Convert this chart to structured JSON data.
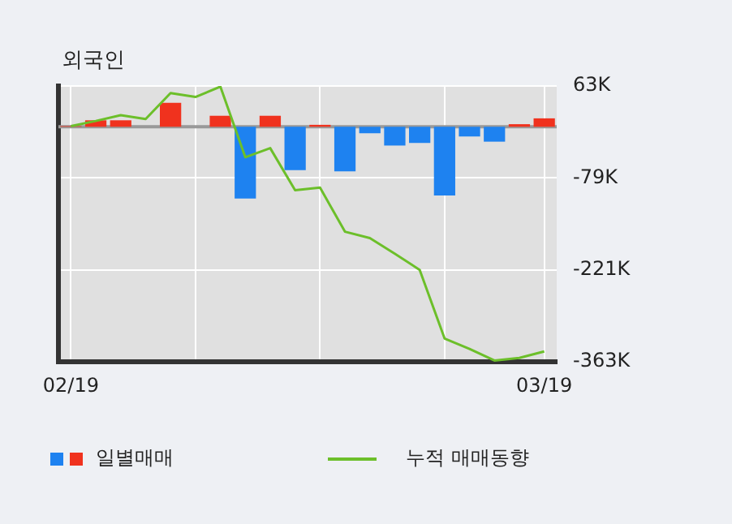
{
  "chart_data": {
    "type": "bar",
    "title": "외국인",
    "categories": [
      "02/19",
      null,
      null,
      null,
      null,
      null,
      null,
      null,
      null,
      null,
      null,
      null,
      null,
      null,
      null,
      null,
      null,
      null,
      null,
      "03/19"
    ],
    "series": [
      {
        "name": "일별매매",
        "values": [
          1,
          10,
          10,
          0,
          37,
          0,
          17,
          -111,
          17,
          -67,
          3,
          -69,
          -10,
          -29,
          -25,
          -106,
          -15,
          -23,
          4,
          13
        ],
        "colors": [
          "#f0321e",
          "#f0321e",
          "#f0321e",
          "#f0321e",
          "#f0321e",
          "#f0321e",
          "#f0321e",
          "#1e82f0",
          "#f0321e",
          "#1e82f0",
          "#f0321e",
          "#1e82f0",
          "#1e82f0",
          "#1e82f0",
          "#1e82f0",
          "#1e82f0",
          "#1e82f0",
          "#1e82f0",
          "#f0321e",
          "#f0321e"
        ]
      },
      {
        "type": "line",
        "name": "누적 매매동향",
        "color": "#6cbf2a",
        "values": [
          1,
          9,
          18,
          12,
          52,
          46,
          62,
          -47,
          -33,
          -98,
          -94,
          -162,
          -172,
          -196,
          -221,
          -327,
          -343,
          -361,
          -357,
          -347
        ]
      }
    ],
    "ylim": [
      -363,
      63
    ],
    "yticks": [
      {
        "value": 63,
        "label": "63K"
      },
      {
        "value": -79,
        "label": "-79K"
      },
      {
        "value": -221,
        "label": "-221K"
      },
      {
        "value": -363,
        "label": "-363K"
      }
    ],
    "ref_lines": [
      {
        "axis": "y",
        "value": 0,
        "color": "#999999"
      }
    ],
    "grid": true,
    "legend": "bottom",
    "marker": "none",
    "line_style": "solid"
  }
}
